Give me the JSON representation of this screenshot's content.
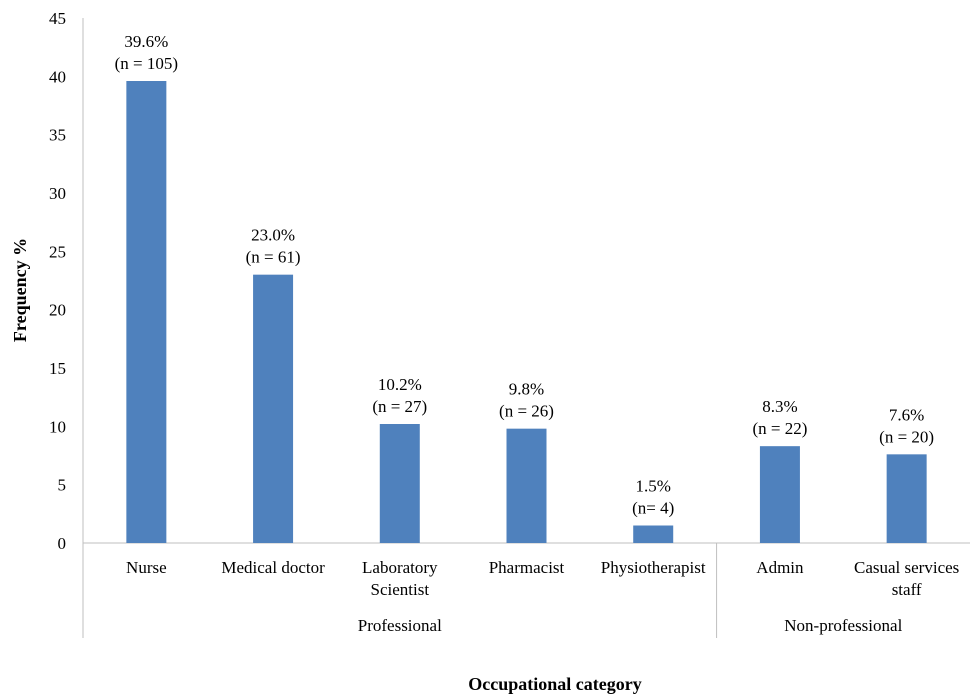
{
  "chart_data": {
    "type": "bar",
    "categories": [
      [
        "Nurse"
      ],
      [
        "Medical doctor"
      ],
      [
        "Laboratory",
        "Scientist"
      ],
      [
        "Pharmacist"
      ],
      [
        "Physiotherapist"
      ],
      [
        "Admin"
      ],
      [
        "Casual services",
        "staff"
      ]
    ],
    "values": [
      39.6,
      23.0,
      10.2,
      9.8,
      1.5,
      8.3,
      7.6
    ],
    "data_labels": [
      [
        "39.6%",
        "(n = 105)"
      ],
      [
        "23.0%",
        "(n = 61)"
      ],
      [
        "10.2%",
        "(n = 27)"
      ],
      [
        "9.8%",
        "(n = 26)"
      ],
      [
        "1.5%",
        "(n= 4)"
      ],
      [
        "8.3%",
        "(n = 22)"
      ],
      [
        "7.6%",
        "(n = 20)"
      ]
    ],
    "groups": [
      {
        "label": "Professional",
        "count": 5
      },
      {
        "label": "Non-professional",
        "count": 2
      }
    ],
    "ylim": [
      0,
      45
    ],
    "yticks": [
      0,
      5,
      10,
      15,
      20,
      25,
      30,
      35,
      40,
      45
    ],
    "xlabel": "Occupational category",
    "ylabel": "Frequency %",
    "grid": false,
    "legend": "none",
    "bar_color": "#4f81bd"
  }
}
